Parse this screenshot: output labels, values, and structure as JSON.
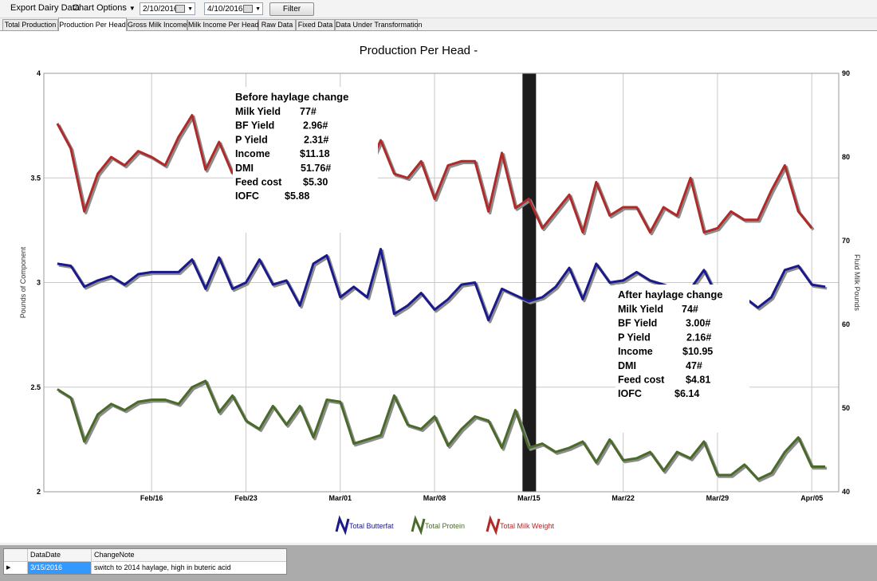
{
  "toolbar": {
    "export_label": "Export Dairy Data",
    "chart_options_label": "Chart Options",
    "start_date": "2/10/2016",
    "end_date": "4/10/2016",
    "filter_label": "Filter"
  },
  "tabs": [
    {
      "label": "Total Production",
      "active": false
    },
    {
      "label": "Production Per Head",
      "active": true
    },
    {
      "label": "Gross Milk Income",
      "active": false
    },
    {
      "label": "Milk Income Per Head",
      "active": false
    },
    {
      "label": "Raw Data",
      "active": false
    },
    {
      "label": "Fixed Data",
      "active": false
    },
    {
      "label": "Data Under Transformation",
      "active": false
    }
  ],
  "chart_data": {
    "type": "line",
    "title": "Production Per Head -",
    "ylabel": "Pounds of Component",
    "y2label": "Fluid Milk Pounds",
    "ylim": [
      2,
      4
    ],
    "y2lim": [
      40,
      90
    ],
    "yticks": [
      "2",
      "2.5",
      "3",
      "3.5",
      "4"
    ],
    "y2ticks": [
      "40",
      "50",
      "60",
      "70",
      "80",
      "90"
    ],
    "x_start": "2016-02-08",
    "x_end": "2016-04-07",
    "xtick_labels": [
      {
        "label": "Feb/16",
        "date": "2016-02-16"
      },
      {
        "label": "Feb/23",
        "date": "2016-02-23"
      },
      {
        "label": "Mar/01",
        "date": "2016-03-01"
      },
      {
        "label": "Mar/08",
        "date": "2016-03-08"
      },
      {
        "label": "Mar/15",
        "date": "2016-03-15"
      },
      {
        "label": "Mar/22",
        "date": "2016-03-22"
      },
      {
        "label": "Mar/29",
        "date": "2016-03-29"
      },
      {
        "label": "Apr/05",
        "date": "2016-04-05"
      }
    ],
    "grid": true,
    "legend_position": "bottom",
    "marker": {
      "date": "2016-03-15",
      "color": "#1c1c1c"
    },
    "series": [
      {
        "name": "Total Butterfat",
        "axis": "left",
        "color": "#1a1a8c",
        "points": [
          [
            "2016-02-09",
            3.09
          ],
          [
            "2016-02-10",
            3.08
          ],
          [
            "2016-02-11",
            2.98
          ],
          [
            "2016-02-12",
            3.01
          ],
          [
            "2016-02-13",
            3.03
          ],
          [
            "2016-02-14",
            2.99
          ],
          [
            "2016-02-15",
            3.04
          ],
          [
            "2016-02-16",
            3.05
          ],
          [
            "2016-02-17",
            3.05
          ],
          [
            "2016-02-18",
            3.05
          ],
          [
            "2016-02-19",
            3.11
          ],
          [
            "2016-02-20",
            2.97
          ],
          [
            "2016-02-21",
            3.12
          ],
          [
            "2016-02-22",
            2.97
          ],
          [
            "2016-02-23",
            3.0
          ],
          [
            "2016-02-24",
            3.11
          ],
          [
            "2016-02-25",
            2.99
          ],
          [
            "2016-02-26",
            3.01
          ],
          [
            "2016-02-27",
            2.89
          ],
          [
            "2016-02-28",
            3.09
          ],
          [
            "2016-02-29",
            3.13
          ],
          [
            "2016-03-01",
            2.93
          ],
          [
            "2016-03-02",
            2.98
          ],
          [
            "2016-03-03",
            2.93
          ],
          [
            "2016-03-04",
            3.16
          ],
          [
            "2016-03-05",
            2.85
          ],
          [
            "2016-03-06",
            2.89
          ],
          [
            "2016-03-07",
            2.95
          ],
          [
            "2016-03-08",
            2.87
          ],
          [
            "2016-03-09",
            2.92
          ],
          [
            "2016-03-10",
            2.99
          ],
          [
            "2016-03-11",
            3.0
          ],
          [
            "2016-03-12",
            2.82
          ],
          [
            "2016-03-13",
            2.97
          ],
          [
            "2016-03-14",
            2.94
          ],
          [
            "2016-03-15",
            2.91
          ],
          [
            "2016-03-16",
            2.93
          ],
          [
            "2016-03-17",
            2.98
          ],
          [
            "2016-03-18",
            3.07
          ],
          [
            "2016-03-19",
            2.92
          ],
          [
            "2016-03-20",
            3.09
          ],
          [
            "2016-03-21",
            3.0
          ],
          [
            "2016-03-22",
            3.01
          ],
          [
            "2016-03-23",
            3.05
          ],
          [
            "2016-03-24",
            3.01
          ],
          [
            "2016-03-25",
            2.99
          ],
          [
            "2016-03-26",
            2.97
          ],
          [
            "2016-03-27",
            2.97
          ],
          [
            "2016-03-28",
            3.06
          ],
          [
            "2016-03-29",
            2.93
          ],
          [
            "2016-03-30",
            2.92
          ],
          [
            "2016-03-31",
            2.93
          ],
          [
            "2016-04-01",
            2.88
          ],
          [
            "2016-04-02",
            2.93
          ],
          [
            "2016-04-03",
            3.06
          ],
          [
            "2016-04-04",
            3.08
          ],
          [
            "2016-04-05",
            2.99
          ],
          [
            "2016-04-06",
            2.98
          ]
        ]
      },
      {
        "name": "Total Protein",
        "axis": "left",
        "color": "#4a6a2a",
        "points": [
          [
            "2016-02-09",
            2.49
          ],
          [
            "2016-02-10",
            2.45
          ],
          [
            "2016-02-11",
            2.24
          ],
          [
            "2016-02-12",
            2.37
          ],
          [
            "2016-02-13",
            2.42
          ],
          [
            "2016-02-14",
            2.39
          ],
          [
            "2016-02-15",
            2.43
          ],
          [
            "2016-02-16",
            2.44
          ],
          [
            "2016-02-17",
            2.44
          ],
          [
            "2016-02-18",
            2.42
          ],
          [
            "2016-02-19",
            2.5
          ],
          [
            "2016-02-20",
            2.53
          ],
          [
            "2016-02-21",
            2.38
          ],
          [
            "2016-02-22",
            2.46
          ],
          [
            "2016-02-23",
            2.34
          ],
          [
            "2016-02-24",
            2.3
          ],
          [
            "2016-02-25",
            2.41
          ],
          [
            "2016-02-26",
            2.32
          ],
          [
            "2016-02-27",
            2.41
          ],
          [
            "2016-02-28",
            2.26
          ],
          [
            "2016-02-29",
            2.44
          ],
          [
            "2016-03-01",
            2.43
          ],
          [
            "2016-03-02",
            2.23
          ],
          [
            "2016-03-03",
            2.25
          ],
          [
            "2016-03-04",
            2.27
          ],
          [
            "2016-03-05",
            2.46
          ],
          [
            "2016-03-06",
            2.32
          ],
          [
            "2016-03-07",
            2.3
          ],
          [
            "2016-03-08",
            2.36
          ],
          [
            "2016-03-09",
            2.22
          ],
          [
            "2016-03-10",
            2.3
          ],
          [
            "2016-03-11",
            2.36
          ],
          [
            "2016-03-12",
            2.34
          ],
          [
            "2016-03-13",
            2.21
          ],
          [
            "2016-03-14",
            2.39
          ],
          [
            "2016-03-15",
            2.21
          ],
          [
            "2016-03-16",
            2.23
          ],
          [
            "2016-03-17",
            2.19
          ],
          [
            "2016-03-18",
            2.21
          ],
          [
            "2016-03-19",
            2.24
          ],
          [
            "2016-03-20",
            2.14
          ],
          [
            "2016-03-21",
            2.25
          ],
          [
            "2016-03-22",
            2.15
          ],
          [
            "2016-03-23",
            2.16
          ],
          [
            "2016-03-24",
            2.19
          ],
          [
            "2016-03-25",
            2.1
          ],
          [
            "2016-03-26",
            2.19
          ],
          [
            "2016-03-27",
            2.16
          ],
          [
            "2016-03-28",
            2.24
          ],
          [
            "2016-03-29",
            2.08
          ],
          [
            "2016-03-30",
            2.08
          ],
          [
            "2016-03-31",
            2.13
          ],
          [
            "2016-04-01",
            2.06
          ],
          [
            "2016-04-02",
            2.09
          ],
          [
            "2016-04-03",
            2.19
          ],
          [
            "2016-04-04",
            2.26
          ],
          [
            "2016-04-05",
            2.12
          ],
          [
            "2016-04-06",
            2.12
          ]
        ]
      },
      {
        "name": "Total Milk Weight",
        "axis": "right",
        "color": "#b02a2a",
        "points": [
          [
            "2016-02-09",
            84.0
          ],
          [
            "2016-02-10",
            81.0
          ],
          [
            "2016-02-11",
            73.5
          ],
          [
            "2016-02-12",
            78.0
          ],
          [
            "2016-02-13",
            80.0
          ],
          [
            "2016-02-14",
            79.0
          ],
          [
            "2016-02-15",
            80.7
          ],
          [
            "2016-02-16",
            80.0
          ],
          [
            "2016-02-17",
            79.0
          ],
          [
            "2016-02-18",
            82.4
          ],
          [
            "2016-02-19",
            85.0
          ],
          [
            "2016-02-20",
            78.5
          ],
          [
            "2016-02-21",
            81.8
          ],
          [
            "2016-02-22",
            78.0
          ],
          [
            "2016-03-03",
            78.5
          ],
          [
            "2016-03-04",
            82.0
          ],
          [
            "2016-03-05",
            78.0
          ],
          [
            "2016-03-06",
            77.5
          ],
          [
            "2016-03-07",
            79.5
          ],
          [
            "2016-03-08",
            75.0
          ],
          [
            "2016-03-09",
            79.0
          ],
          [
            "2016-03-10",
            79.5
          ],
          [
            "2016-03-11",
            79.5
          ],
          [
            "2016-03-12",
            73.5
          ],
          [
            "2016-03-13",
            80.5
          ],
          [
            "2016-03-14",
            73.9
          ],
          [
            "2016-03-15",
            75.0
          ],
          [
            "2016-03-16",
            71.5
          ],
          [
            "2016-03-17",
            73.5
          ],
          [
            "2016-03-18",
            75.5
          ],
          [
            "2016-03-19",
            71.0
          ],
          [
            "2016-03-20",
            77.0
          ],
          [
            "2016-03-21",
            73.0
          ],
          [
            "2016-03-22",
            74.0
          ],
          [
            "2016-03-23",
            74.0
          ],
          [
            "2016-03-24",
            71.0
          ],
          [
            "2016-03-25",
            74.0
          ],
          [
            "2016-03-26",
            73.0
          ],
          [
            "2016-03-27",
            77.5
          ],
          [
            "2016-03-28",
            71.0
          ],
          [
            "2016-03-29",
            71.5
          ],
          [
            "2016-03-30",
            73.5
          ],
          [
            "2016-03-31",
            72.5
          ],
          [
            "2016-04-01",
            72.5
          ],
          [
            "2016-04-02",
            76.0
          ],
          [
            "2016-04-03",
            79.0
          ],
          [
            "2016-04-04",
            73.5
          ],
          [
            "2016-04-05",
            71.5
          ]
        ]
      }
    ],
    "annotations": [
      {
        "id": "before",
        "title": "Before haylage change",
        "rows": [
          {
            "label": "Milk Yield",
            "value": "77#"
          },
          {
            "label": "BF  Yield",
            "value": "2.96#"
          },
          {
            "label": "P Yield",
            "value": "2.31#"
          },
          {
            "label": "Income",
            "value": "$11.18"
          },
          {
            "label": "DMI",
            "value": "51.76#"
          },
          {
            "label": "Feed cost",
            "value": "$5.30"
          },
          {
            "label": "IOFC",
            "value": "$5.88"
          }
        ]
      },
      {
        "id": "after",
        "title": "After haylage change",
        "rows": [
          {
            "label": "Milk Yield",
            "value": "74#"
          },
          {
            "label": "BF Yield",
            "value": "3.00#"
          },
          {
            "label": "P Yield",
            "value": "2.16#"
          },
          {
            "label": "Income",
            "value": "$10.95"
          },
          {
            "label": "DMI",
            "value": "47#"
          },
          {
            "label": "Feed cost",
            "value": "$4.81"
          },
          {
            "label": "IOFC",
            "value": "$6.14"
          }
        ]
      }
    ]
  },
  "notes_grid": {
    "columns": [
      "DataDate",
      "ChangeNote"
    ],
    "rows": [
      {
        "date": "3/15/2016",
        "note": "switch to 2014 haylage, high in buteric acid"
      }
    ]
  }
}
